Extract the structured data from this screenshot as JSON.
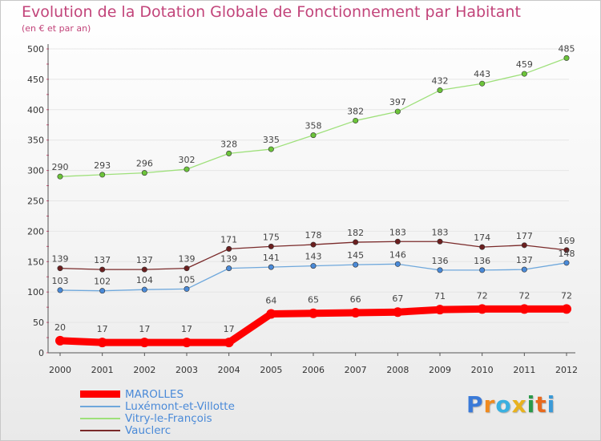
{
  "header": {
    "title": "Evolution de la Dotation Globale de Fonctionnement par Habitant",
    "subtitle": "(en € et par an)"
  },
  "chart_data": {
    "type": "line",
    "title": "Evolution de la Dotation Globale de Fonctionnement par Habitant",
    "subtitle": "(en € et par an)",
    "xlabel": "",
    "ylabel": "",
    "ylim": [
      0,
      500
    ],
    "yticks": [
      0,
      50,
      100,
      150,
      200,
      250,
      300,
      350,
      400,
      450,
      500
    ],
    "grid": true,
    "legend_position": "bottom-left",
    "categories": [
      "2000",
      "2001",
      "2002",
      "2003",
      "2004",
      "2005",
      "2006",
      "2007",
      "2008",
      "2009",
      "2010",
      "2011",
      "2012"
    ],
    "series": [
      {
        "name": "MAROLLES",
        "color": "#ff0000",
        "marker": "#ff0000",
        "values": [
          20,
          17,
          17,
          17,
          17,
          64,
          65,
          66,
          67,
          71,
          72,
          72,
          72
        ]
      },
      {
        "name": "Luxémont-et-Villotte",
        "color": "#6fa8dc",
        "marker": "#4a8ad8",
        "values": [
          103,
          102,
          104,
          105,
          139,
          141,
          143,
          145,
          146,
          136,
          136,
          137,
          148
        ]
      },
      {
        "name": "Vitry-le-François",
        "color": "#9ee07a",
        "marker": "#6cc43a",
        "values": [
          290,
          293,
          296,
          302,
          328,
          335,
          358,
          382,
          397,
          432,
          443,
          459,
          485
        ]
      },
      {
        "name": "Vauclerc",
        "color": "#7a2a2a",
        "marker": "#6b1f1f",
        "values": [
          139,
          137,
          137,
          139,
          171,
          175,
          178,
          182,
          183,
          183,
          174,
          177,
          169
        ]
      }
    ]
  },
  "legend": {
    "items": [
      {
        "label": "MAROLLES"
      },
      {
        "label": "Luxémont-et-Villotte"
      },
      {
        "label": "Vitry-le-François"
      },
      {
        "label": "Vauclerc"
      }
    ]
  },
  "logo": {
    "letters": [
      "P",
      "r",
      "o",
      "x",
      "i",
      "t",
      "i"
    ],
    "colors": [
      "#3a7ad8",
      "#f08a1e",
      "#3ab0e0",
      "#e8b21e",
      "#2a9a4a",
      "#e86a1e",
      "#3a9ad8"
    ]
  }
}
